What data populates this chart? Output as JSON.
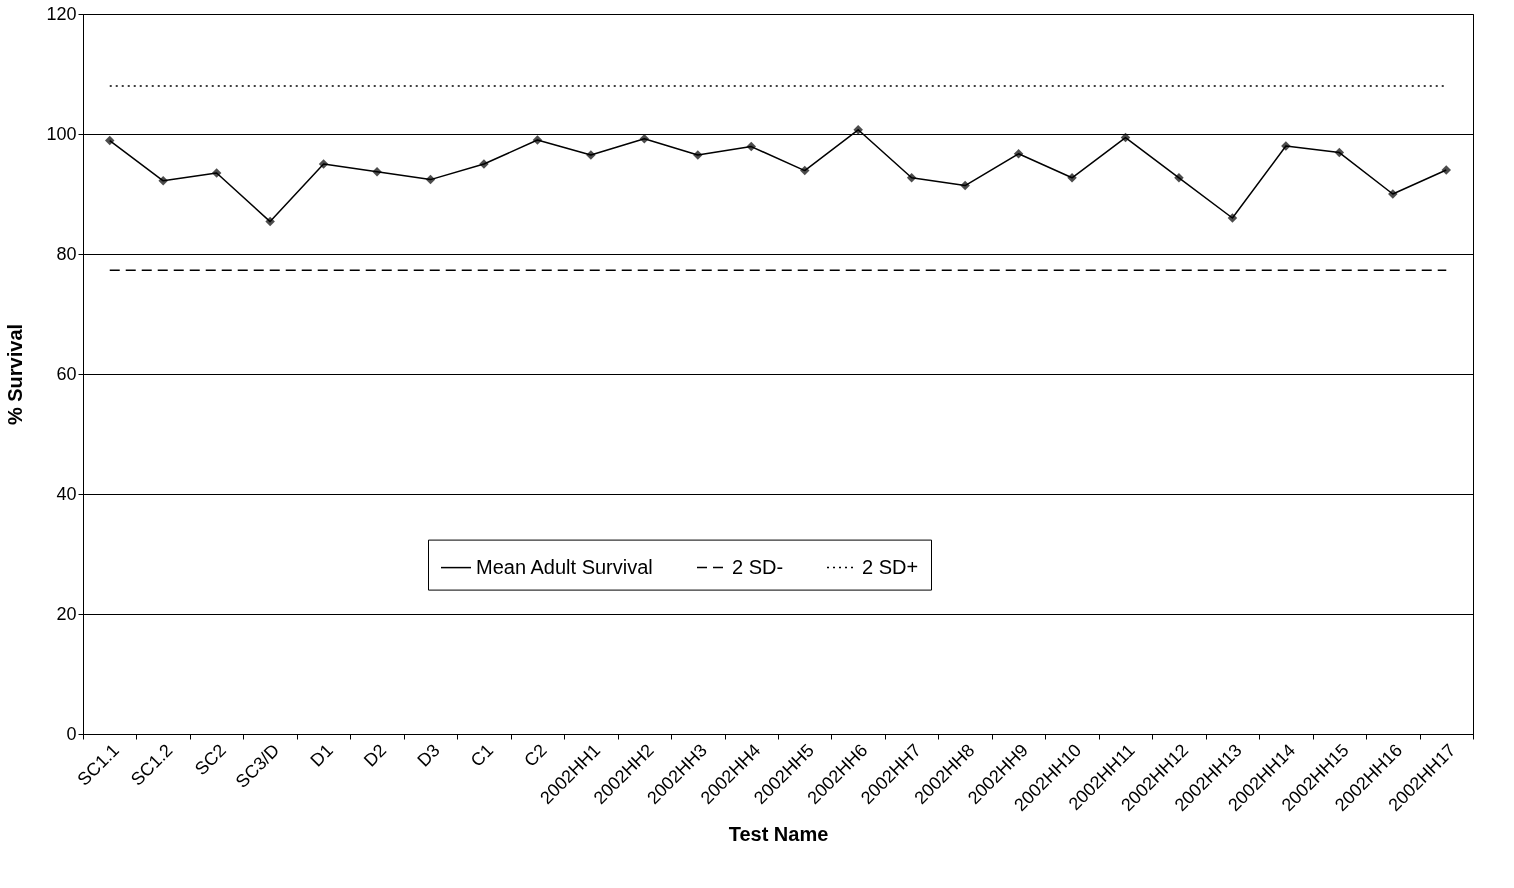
{
  "chart_data": {
    "type": "line",
    "xlabel": "Test Name",
    "ylabel": "% Survival",
    "categories": [
      "SC1.1",
      "SC1.2",
      "SC2",
      "SC3/D",
      "D1",
      "D2",
      "D3",
      "C1",
      "C2",
      "2002HH1",
      "2002HH2",
      "2002HH3",
      "2002HH4",
      "2002HH5",
      "2002HH6",
      "2002HH7",
      "2002HH8",
      "2002HH9",
      "2002HH10",
      "2002HH11",
      "2002HH12",
      "2002HH13",
      "2002HH14",
      "2002HH15",
      "2002HH16",
      "2002HH17"
    ],
    "series": [
      {
        "name": "Mean Adult Survival",
        "color": "#000000",
        "marker": "diamond",
        "line_style": "solid",
        "values": [
          98.9,
          92.2,
          93.5,
          85.4,
          95.0,
          93.7,
          92.4,
          95.0,
          99.0,
          96.5,
          99.2,
          96.5,
          97.9,
          93.9,
          100.7,
          92.7,
          91.4,
          96.7,
          92.7,
          99.4,
          92.7,
          86.0,
          98.0,
          96.9,
          90.0,
          94.0
        ]
      },
      {
        "name": "2 SD-",
        "color": "#000000",
        "marker": "none",
        "line_style": "dashed",
        "values": [
          77.3,
          77.3,
          77.3,
          77.3,
          77.3,
          77.3,
          77.3,
          77.3,
          77.3,
          77.3,
          77.3,
          77.3,
          77.3,
          77.3,
          77.3,
          77.3,
          77.3,
          77.3,
          77.3,
          77.3,
          77.3,
          77.3,
          77.3,
          77.3,
          77.3,
          77.3
        ]
      },
      {
        "name": "2 SD+",
        "color": "#000000",
        "marker": "none",
        "line_style": "dotted",
        "values": [
          108.0,
          108.0,
          108.0,
          108.0,
          108.0,
          108.0,
          108.0,
          108.0,
          108.0,
          108.0,
          108.0,
          108.0,
          108.0,
          108.0,
          108.0,
          108.0,
          108.0,
          108.0,
          108.0,
          108.0,
          108.0,
          108.0,
          108.0,
          108.0,
          108.0,
          108.0
        ]
      }
    ],
    "ylim": [
      0,
      120
    ],
    "yticks": [
      0,
      20,
      40,
      60,
      80,
      100,
      120
    ],
    "grid": "y",
    "legend": "bottom"
  }
}
